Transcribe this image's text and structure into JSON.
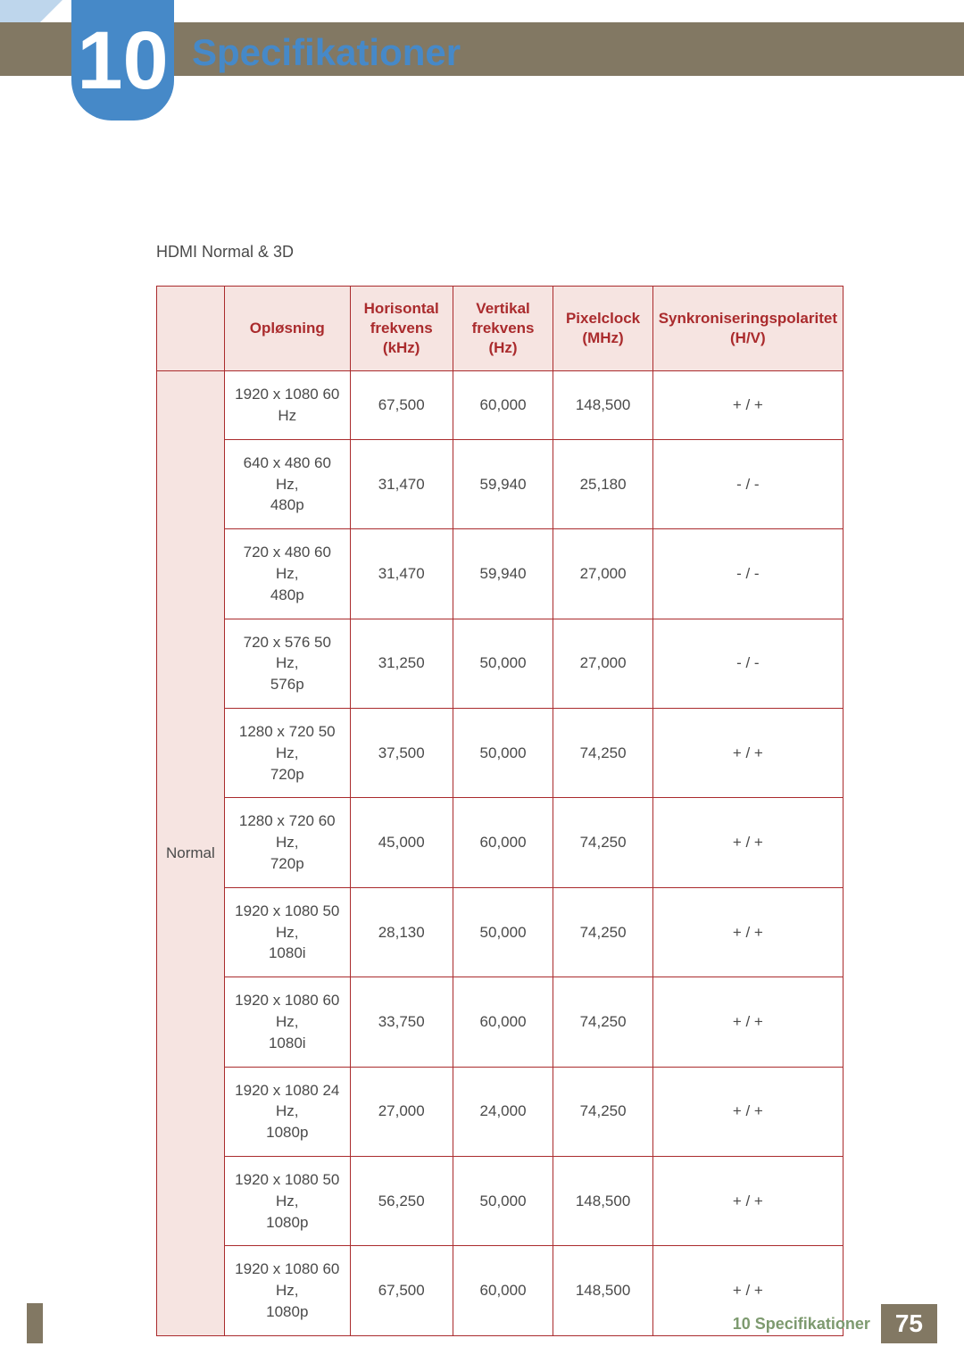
{
  "chapter": "10",
  "title": "Specifikationer",
  "section_label": "HDMI Normal & 3D",
  "columns": [
    "",
    "Opløsning",
    "Horisontal frekvens (kHz)",
    "Vertikal frekvens (Hz)",
    "Pixelclock (MHz)",
    "Synkroniseringspolaritet (H/V)"
  ],
  "group_label": "Normal",
  "rows": [
    {
      "res": "1920 x 1080 60 Hz",
      "hf": "67,500",
      "vf": "60,000",
      "pc": "148,500",
      "sp": "+ / +"
    },
    {
      "res": "640 x 480 60 Hz, 480p",
      "hf": "31,470",
      "vf": "59,940",
      "pc": "25,180",
      "sp": "- / -"
    },
    {
      "res": "720 x 480 60 Hz, 480p",
      "hf": "31,470",
      "vf": "59,940",
      "pc": "27,000",
      "sp": "- / -"
    },
    {
      "res": "720 x 576 50 Hz, 576p",
      "hf": "31,250",
      "vf": "50,000",
      "pc": "27,000",
      "sp": "- / -"
    },
    {
      "res": "1280 x 720 50 Hz, 720p",
      "hf": "37,500",
      "vf": "50,000",
      "pc": "74,250",
      "sp": "+ / +"
    },
    {
      "res": "1280 x 720 60 Hz, 720p",
      "hf": "45,000",
      "vf": "60,000",
      "pc": "74,250",
      "sp": "+ / +"
    },
    {
      "res": "1920 x 1080 50 Hz, 1080i",
      "hf": "28,130",
      "vf": "50,000",
      "pc": "74,250",
      "sp": "+ / +"
    },
    {
      "res": "1920 x 1080 60 Hz, 1080i",
      "hf": "33,750",
      "vf": "60,000",
      "pc": "74,250",
      "sp": "+ / +"
    },
    {
      "res": "1920 x 1080 24 Hz, 1080p",
      "hf": "27,000",
      "vf": "24,000",
      "pc": "74,250",
      "sp": "+ / +"
    },
    {
      "res": "1920 x 1080 50 Hz, 1080p",
      "hf": "56,250",
      "vf": "50,000",
      "pc": "148,500",
      "sp": "+ / +"
    },
    {
      "res": "1920 x 1080 60 Hz, 1080p",
      "hf": "67,500",
      "vf": "60,000",
      "pc": "148,500",
      "sp": "+ / +"
    }
  ],
  "footer": {
    "label": "10 Specifikationer",
    "page": "75"
  },
  "col_widths": [
    "72px",
    "178px",
    "130px",
    "138px",
    "124px",
    "128px"
  ]
}
